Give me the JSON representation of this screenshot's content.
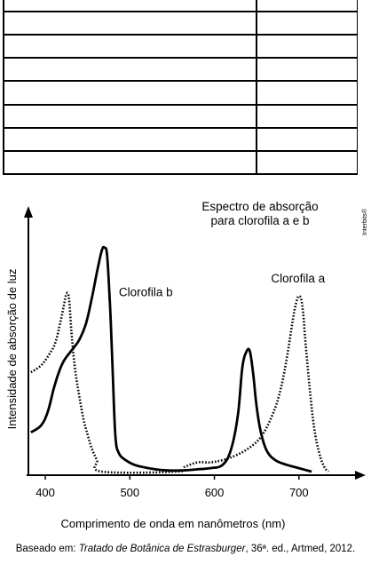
{
  "table": {
    "rows": 8,
    "columns": 2,
    "cells": []
  },
  "watermark": "Interbits®",
  "caption": {
    "prefix": "Baseado em: ",
    "title": "Tratado de Botânica de Estrasburger",
    "suffix": ", 36ª. ed., Artmed, 2012."
  },
  "chart_data": {
    "type": "line",
    "title_lines": [
      "Espectro de absorção",
      "para clorofila a e b"
    ],
    "xlabel": "Comprimento de onda em nanômetros (nm)",
    "ylabel": "Intensidade de absorção de luz",
    "xlim": [
      380,
      780
    ],
    "ylim": [
      0,
      100
    ],
    "x_ticks": [
      400,
      500,
      600,
      700
    ],
    "grid": false,
    "series": [
      {
        "name": "Clorofila b",
        "style": "solid",
        "color": "#000000",
        "points": [
          [
            383,
            17
          ],
          [
            395,
            20
          ],
          [
            403,
            26
          ],
          [
            410,
            36
          ],
          [
            416,
            43
          ],
          [
            422,
            48
          ],
          [
            430,
            52
          ],
          [
            440,
            57
          ],
          [
            448,
            64
          ],
          [
            455,
            75
          ],
          [
            462,
            88
          ],
          [
            467,
            96
          ],
          [
            470,
            97
          ],
          [
            473,
            94
          ],
          [
            476,
            76
          ],
          [
            478,
            60
          ],
          [
            480,
            40
          ],
          [
            483,
            15
          ],
          [
            487,
            8
          ],
          [
            495,
            5
          ],
          [
            505,
            3
          ],
          [
            515,
            2
          ],
          [
            530,
            1
          ],
          [
            545,
            0.5
          ],
          [
            560,
            0.5
          ],
          [
            580,
            1
          ],
          [
            595,
            1.5
          ],
          [
            610,
            3
          ],
          [
            620,
            10
          ],
          [
            628,
            25
          ],
          [
            633,
            45
          ],
          [
            638,
            52
          ],
          [
            642,
            52
          ],
          [
            646,
            42
          ],
          [
            650,
            28
          ],
          [
            655,
            17
          ],
          [
            662,
            9
          ],
          [
            672,
            5
          ],
          [
            685,
            3
          ],
          [
            700,
            1.5
          ],
          [
            715,
            0
          ]
        ]
      },
      {
        "name": "Clorofila a",
        "style": "dotted",
        "color": "#000000",
        "points": [
          [
            383,
            43
          ],
          [
            395,
            46
          ],
          [
            405,
            51
          ],
          [
            412,
            56
          ],
          [
            418,
            65
          ],
          [
            422,
            72
          ],
          [
            425,
            77
          ],
          [
            428,
            75
          ],
          [
            431,
            60
          ],
          [
            435,
            45
          ],
          [
            440,
            33
          ],
          [
            445,
            23
          ],
          [
            450,
            16
          ],
          [
            455,
            10
          ],
          [
            461,
            5
          ],
          [
            467,
            0
          ],
          [
            555,
            0
          ],
          [
            565,
            2
          ],
          [
            580,
            4
          ],
          [
            595,
            4
          ],
          [
            610,
            5
          ],
          [
            625,
            7
          ],
          [
            640,
            10
          ],
          [
            655,
            15
          ],
          [
            668,
            24
          ],
          [
            678,
            35
          ],
          [
            686,
            50
          ],
          [
            692,
            64
          ],
          [
            696,
            72
          ],
          [
            700,
            76
          ],
          [
            704,
            72
          ],
          [
            708,
            55
          ],
          [
            713,
            35
          ],
          [
            718,
            19
          ],
          [
            724,
            8
          ],
          [
            730,
            2
          ],
          [
            735,
            0
          ]
        ]
      }
    ],
    "annotations": [
      {
        "text": "Clorofila b",
        "x": 487,
        "y": 76
      },
      {
        "text": "Clorofila a",
        "x": 667,
        "y": 82
      }
    ]
  }
}
